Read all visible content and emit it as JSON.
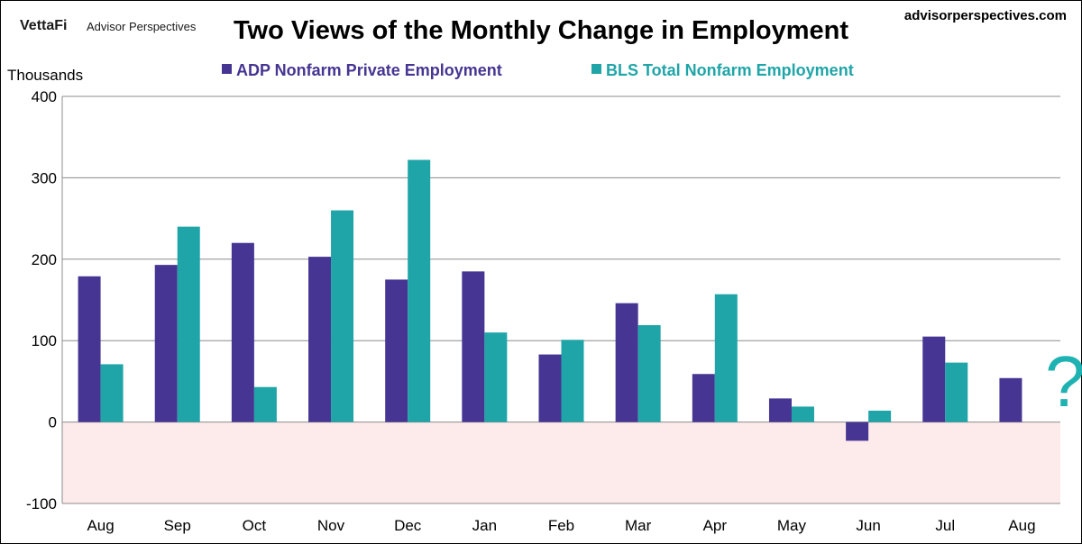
{
  "header": {
    "brand_logo": "VettaFi",
    "brand_name": "Advisor Perspectives",
    "site": "advisorperspectives.com"
  },
  "chart_data": {
    "type": "bar",
    "title": "Two Views of the Monthly Change in Employment",
    "ylabel": "Thousands",
    "xlabel": "",
    "ylim": [
      -100,
      400
    ],
    "yticks": [
      -100,
      0,
      100,
      200,
      300,
      400
    ],
    "grid": true,
    "legend_position": "top",
    "categories": [
      "Aug",
      "Sep",
      "Oct",
      "Nov",
      "Dec",
      "Jan",
      "Feb",
      "Mar",
      "Apr",
      "May",
      "Jun",
      "Jul",
      "Aug"
    ],
    "series": [
      {
        "name": "ADP Nonfarm Private Employment",
        "color": "#463592",
        "values": [
          179,
          193,
          220,
          203,
          175,
          185,
          83,
          146,
          59,
          29,
          -23,
          105,
          54
        ]
      },
      {
        "name": "BLS Total Nonfarm Employment",
        "color": "#1fa5a8",
        "values": [
          71,
          240,
          43,
          260,
          322,
          110,
          101,
          119,
          157,
          19,
          14,
          73,
          null
        ]
      }
    ],
    "negative_region_color": "#fdeaea",
    "annotation": "?"
  }
}
